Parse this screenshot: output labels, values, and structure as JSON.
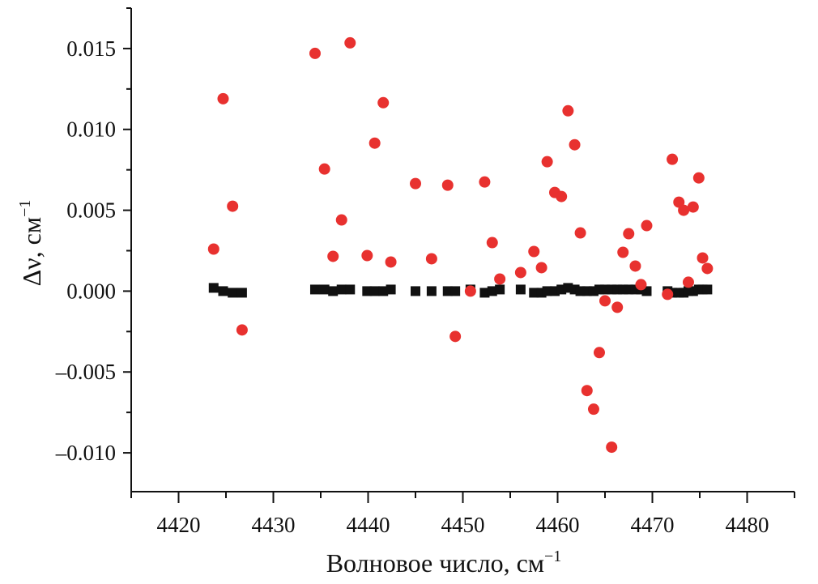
{
  "chart_data": {
    "type": "scatter",
    "title": "",
    "xlabel": "Волновое число, см",
    "xlabel_sup": "−1",
    "ylabel": "Δν, см",
    "ylabel_sup": "−1",
    "xlim": [
      4415,
      4485
    ],
    "ylim": [
      -0.0124,
      0.0175
    ],
    "x_ticks": [
      4420,
      4430,
      4440,
      4450,
      4460,
      4470,
      4480
    ],
    "x_tick_labels": [
      "4420",
      "4430",
      "4440",
      "4450",
      "4460",
      "4470",
      "4480"
    ],
    "y_ticks": [
      0.015,
      0.01,
      0.005,
      0.0,
      -0.005,
      -0.01
    ],
    "y_tick_labels": [
      "0.015",
      "0.010",
      "0.005",
      "0.000",
      "–0.005",
      "–0.010"
    ],
    "grid": false,
    "legend": "none",
    "series": [
      {
        "color": "#e8312f",
        "marker": "circle",
        "x": [
          4423.7,
          4424.7,
          4425.7,
          4426.7,
          4434.4,
          4435.4,
          4436.3,
          4437.2,
          4438.1,
          4439.9,
          4440.7,
          4441.6,
          4442.4,
          4445.0,
          4446.7,
          4448.4,
          4449.2,
          4450.8,
          4452.3,
          4453.1,
          4453.9,
          4456.1,
          4457.5,
          4458.3,
          4458.9,
          4459.7,
          4460.4,
          4461.1,
          4461.8,
          4462.4,
          4463.1,
          4463.8,
          4464.4,
          4465.0,
          4465.7,
          4466.3,
          4466.9,
          4467.5,
          4468.2,
          4468.8,
          4469.4,
          4471.6,
          4472.1,
          4472.8,
          4473.3,
          4473.8,
          4474.3,
          4474.9,
          4475.3,
          4475.8
        ],
        "y": [
          0.0026,
          0.0119,
          0.00525,
          -0.0024,
          0.0147,
          0.00755,
          0.00215,
          0.0044,
          0.01535,
          0.0022,
          0.00915,
          0.01165,
          0.0018,
          0.00665,
          0.002,
          0.00655,
          -0.0028,
          0.0,
          0.00675,
          0.003,
          0.00075,
          0.00115,
          0.00245,
          0.00145,
          0.008,
          0.0061,
          0.00585,
          0.01115,
          0.00905,
          0.0036,
          -0.00615,
          -0.0073,
          -0.0038,
          -0.0006,
          -0.00965,
          -0.001,
          0.0024,
          0.00355,
          0.00155,
          0.0004,
          0.00405,
          -0.0002,
          0.00815,
          0.0055,
          0.005,
          0.00055,
          0.0052,
          0.007,
          0.00205,
          0.0014
        ]
      },
      {
        "color": "#111111",
        "marker": "square",
        "x": [
          4423.7,
          4424.7,
          4425.7,
          4426.7,
          4434.4,
          4435.4,
          4436.3,
          4437.2,
          4438.1,
          4439.9,
          4440.7,
          4441.6,
          4442.4,
          4445.0,
          4446.7,
          4448.4,
          4449.2,
          4450.8,
          4452.3,
          4453.1,
          4453.9,
          4456.1,
          4457.5,
          4458.3,
          4458.9,
          4459.7,
          4460.4,
          4461.1,
          4461.8,
          4462.4,
          4463.1,
          4463.8,
          4464.4,
          4465.0,
          4465.7,
          4466.3,
          4466.9,
          4467.5,
          4468.2,
          4468.8,
          4469.4,
          4471.6,
          4472.1,
          4472.8,
          4473.3,
          4473.8,
          4474.3,
          4474.9,
          4475.3,
          4475.8
        ],
        "y": [
          0.0002,
          0.0,
          -0.0001,
          -0.0001,
          0.0001,
          0.0001,
          0.0,
          0.0001,
          0.0001,
          0.0,
          0.0,
          0.0,
          0.0001,
          0.0,
          0.0,
          0.0,
          0.0,
          0.0001,
          -0.0001,
          0.0,
          0.0001,
          0.0001,
          -0.0001,
          -0.0001,
          0.0,
          0.0,
          0.0001,
          0.0002,
          0.0001,
          0.0,
          0.0,
          0.0,
          0.0001,
          0.0001,
          0.0001,
          0.0001,
          0.0001,
          0.0001,
          0.0001,
          0.0001,
          0.0,
          0.0,
          -0.0001,
          -0.0001,
          -0.0001,
          0.0,
          0.0,
          0.0001,
          0.0001,
          0.0001
        ]
      }
    ]
  }
}
